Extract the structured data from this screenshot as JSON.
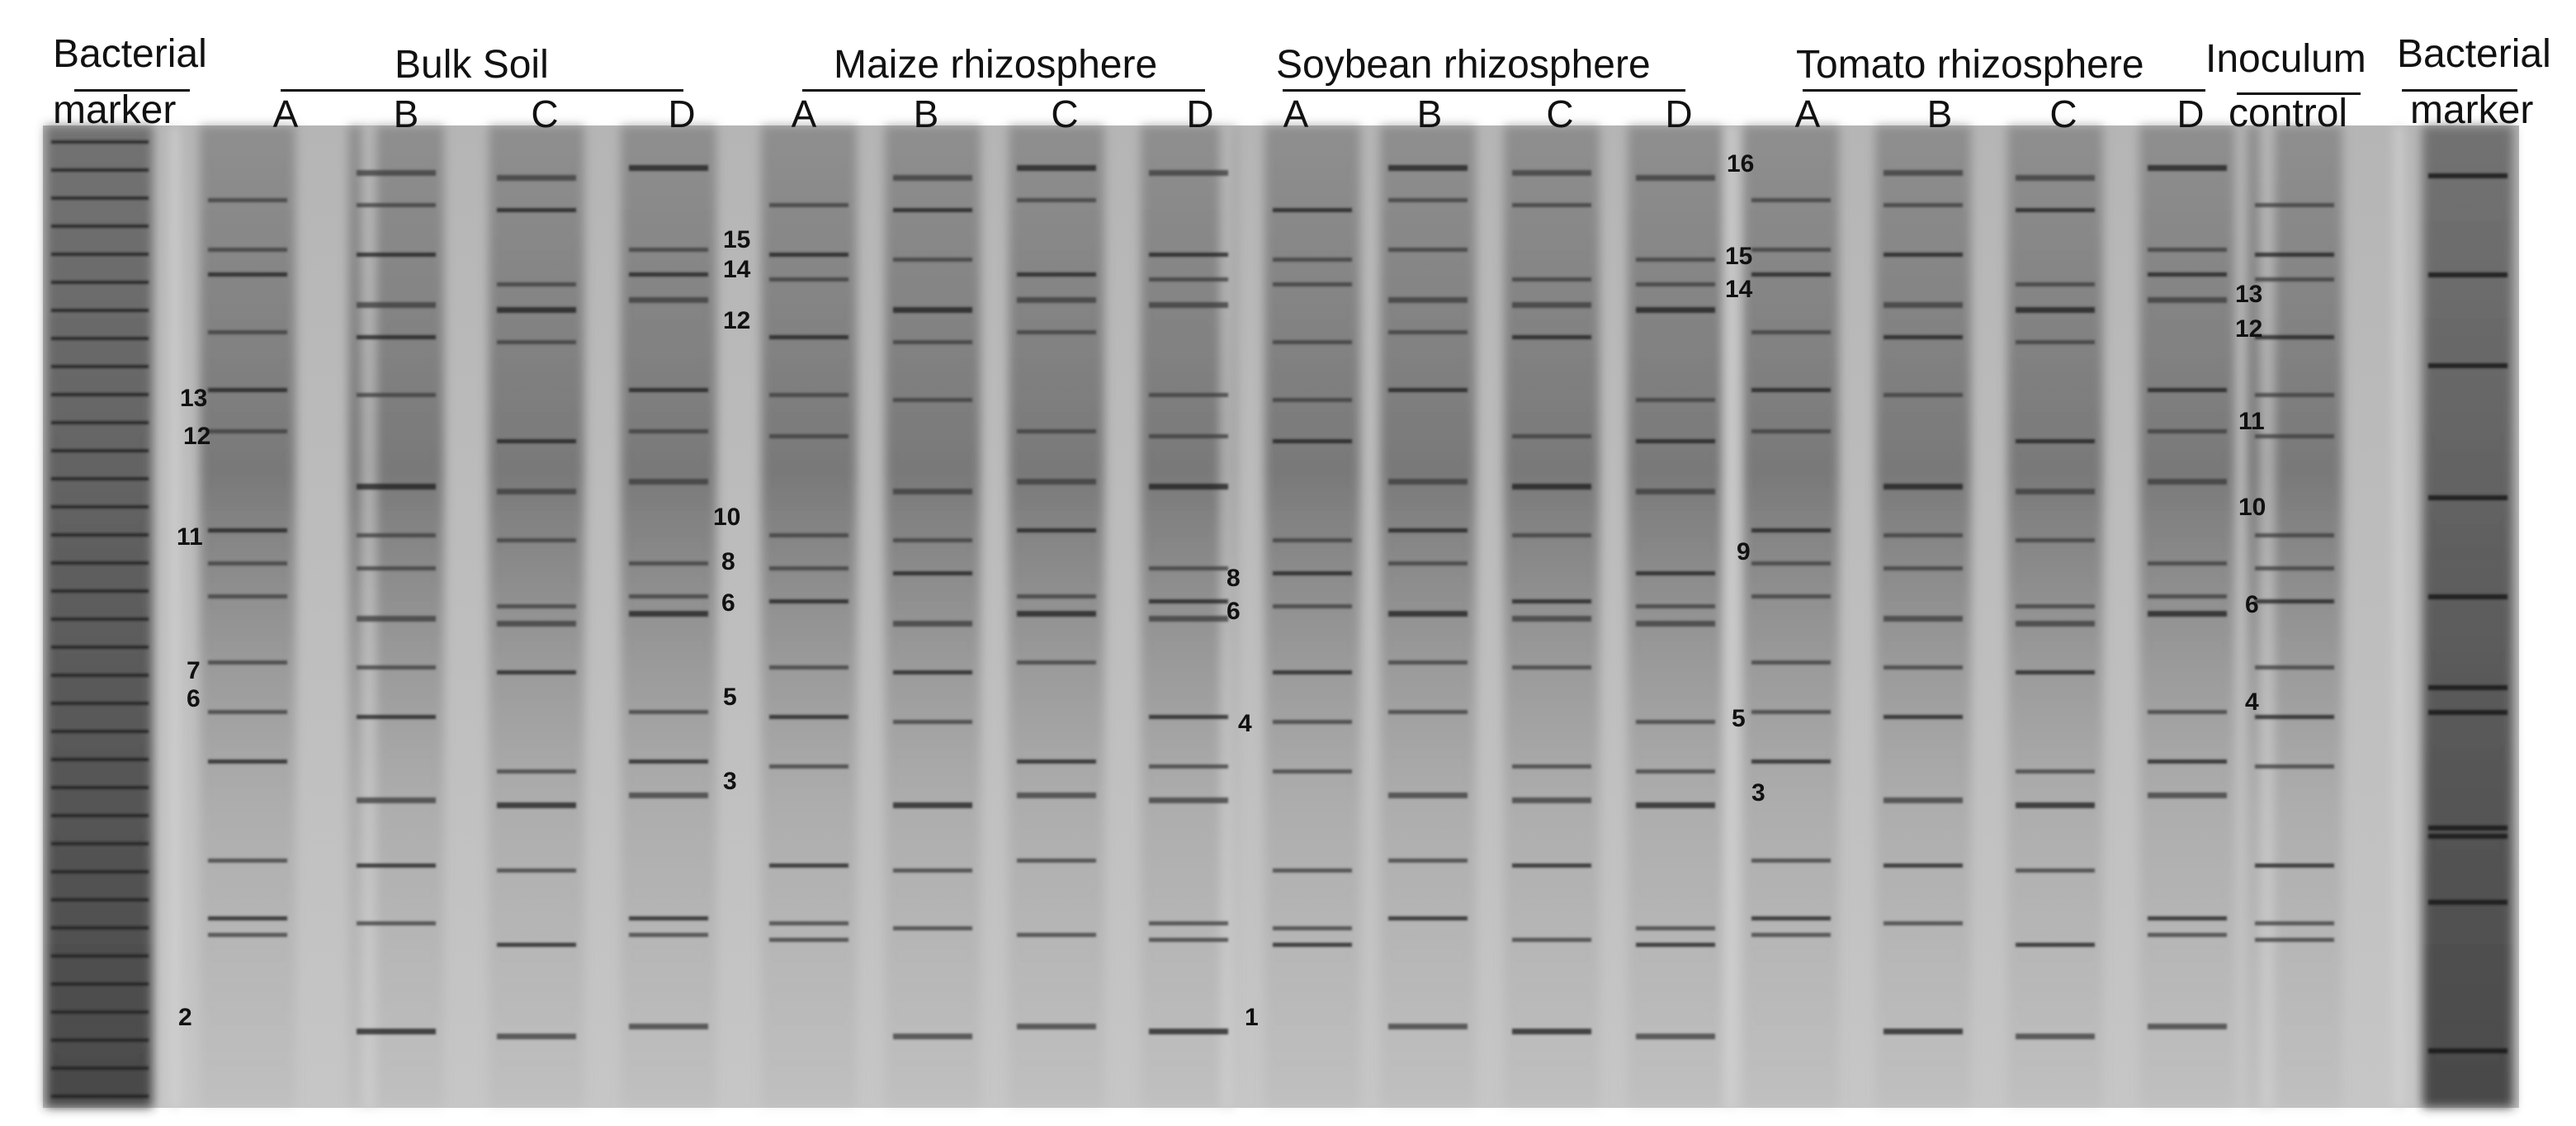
{
  "headers": {
    "bacterial_marker_left_1": "Bacterial",
    "bacterial_marker_left_2": "marker",
    "bulk_soil": "Bulk Soil",
    "maize": "Maize rhizosphere",
    "soybean": "Soybean rhizosphere",
    "tomato": "Tomato rhizosphere",
    "inoculum_1": "Inoculum",
    "inoculum_2": "control",
    "bacterial_marker_right_1": "Bacterial",
    "bacterial_marker_right_2": "marker"
  },
  "lane_labels": [
    "A",
    "B",
    "C",
    "D",
    "A",
    "B",
    "C",
    "D",
    "A",
    "B",
    "C",
    "D",
    "A",
    "B",
    "C",
    "D"
  ],
  "band_labels": {
    "bulk": [
      "13",
      "12",
      "11",
      "7",
      "6",
      "2"
    ],
    "maize": [
      "15",
      "14",
      "12",
      "10",
      "8",
      "6",
      "5",
      "3"
    ],
    "maize_right": [
      "8",
      "6",
      "4"
    ],
    "soy_bottom": "1",
    "soy_right": [
      "16",
      "15",
      "14",
      "9",
      "5",
      "3"
    ],
    "inoculum": [
      "13",
      "12",
      "11",
      "10",
      "6",
      "4"
    ]
  }
}
